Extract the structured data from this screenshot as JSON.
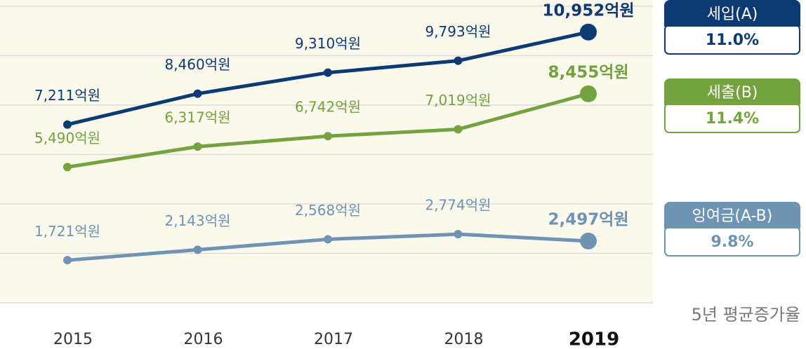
{
  "chart_data": {
    "type": "line",
    "categories": [
      "2015",
      "2016",
      "2017",
      "2018",
      "2019"
    ],
    "series": [
      {
        "name": "세입(A)",
        "color": "#0e3a73",
        "growth": "11.0%",
        "values": [
          7211,
          8460,
          9310,
          9793,
          10952
        ],
        "value_labels": [
          "7,211억원",
          "8,460억원",
          "9,310억원",
          "9,793억원",
          "10,952억원"
        ]
      },
      {
        "name": "세출(B)",
        "color": "#74a23e",
        "growth": "11.4%",
        "values": [
          5490,
          6317,
          6742,
          7019,
          8455
        ],
        "value_labels": [
          "5,490억원",
          "6,317억원",
          "6,742억원",
          "7,019억원",
          "8,455억원"
        ]
      },
      {
        "name": "잉여금(A-B)",
        "color": "#6e93b3",
        "growth": "9.8%",
        "values": [
          1721,
          2143,
          2568,
          2774,
          2497
        ],
        "value_labels": [
          "1,721억원",
          "2,143억원",
          "2,568억원",
          "2,774억원",
          "2,497억원"
        ]
      }
    ],
    "ylim": [
      0,
      12250
    ],
    "yticks": [
      0,
      2000,
      4000,
      6000,
      8000,
      10000,
      12000
    ],
    "grid": true,
    "note": "5년 평균증가율"
  }
}
